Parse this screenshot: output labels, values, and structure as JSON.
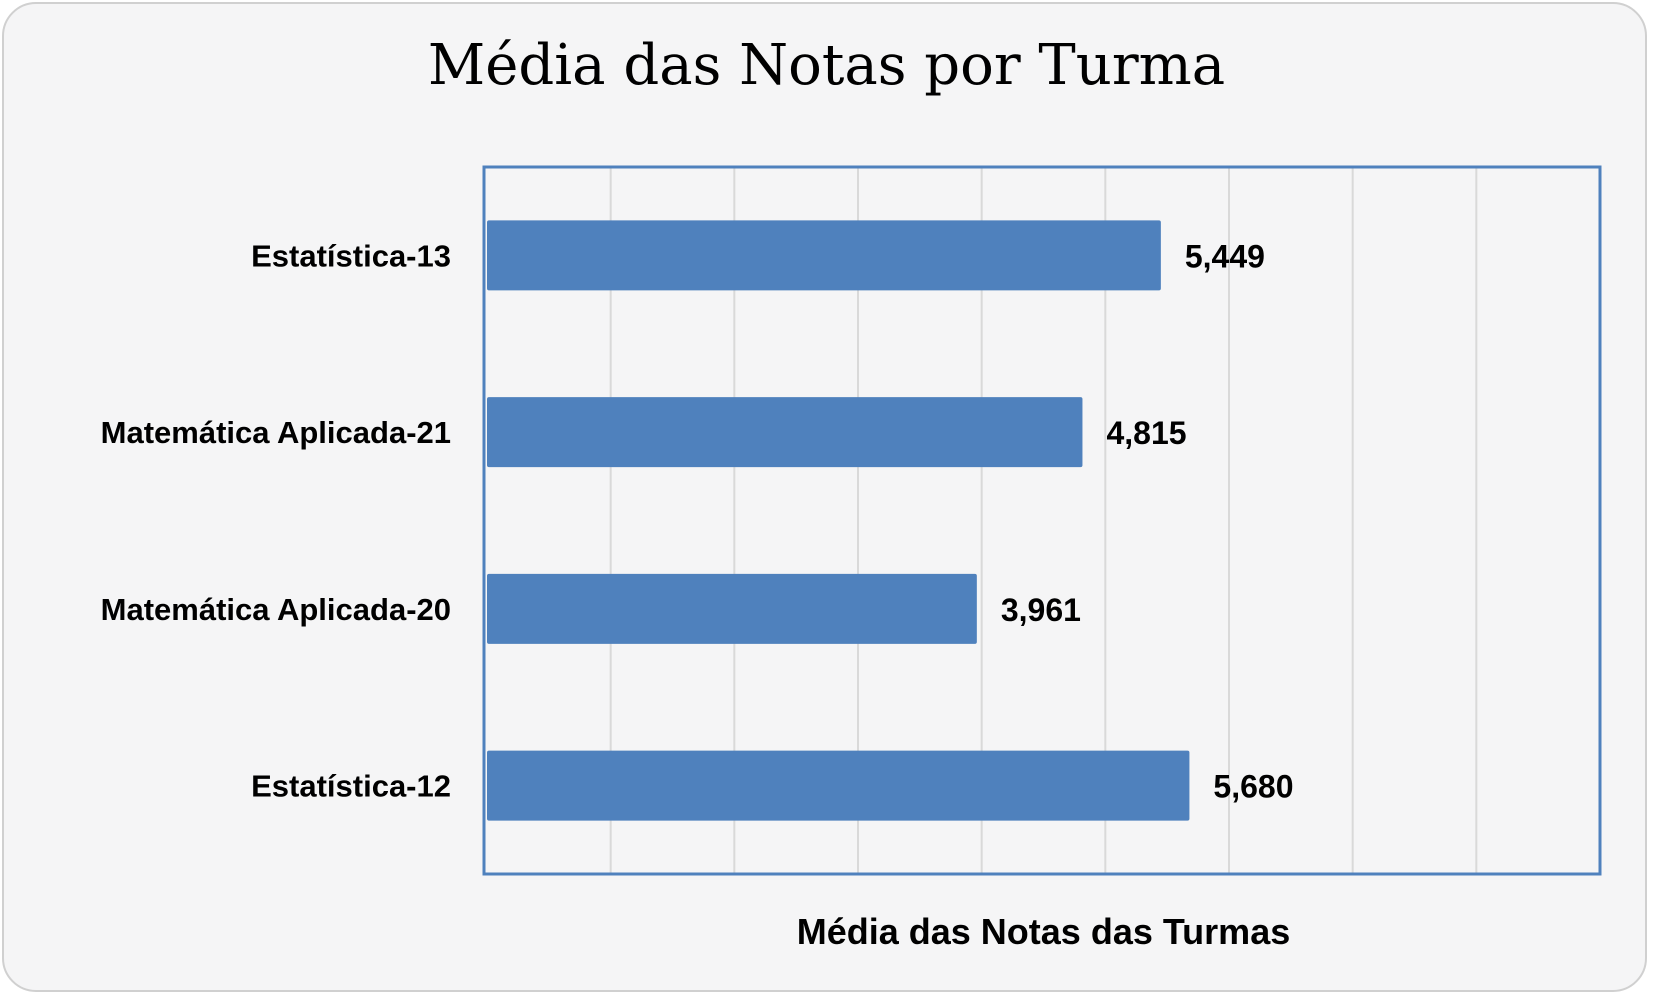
{
  "chart_data": {
    "type": "bar",
    "orientation": "horizontal",
    "title": "Média das Notas por Turma",
    "xlabel": "Média das Notas das Turmas",
    "ylabel": "",
    "categories": [
      "Estatística-13",
      "Matemática Aplicada-21",
      "Matemática Aplicada-20",
      "Estatística-12"
    ],
    "values": [
      5.449,
      4.815,
      3.961,
      5.68
    ],
    "value_labels": [
      "5,449",
      "4,815",
      "3,961",
      "5,680"
    ],
    "xlim": [
      0,
      9
    ],
    "grid": true,
    "legend": "none",
    "bar_color": "#4f81bd",
    "plot_border_color": "#4f81bd",
    "grid_color": "#d9d9d9"
  }
}
